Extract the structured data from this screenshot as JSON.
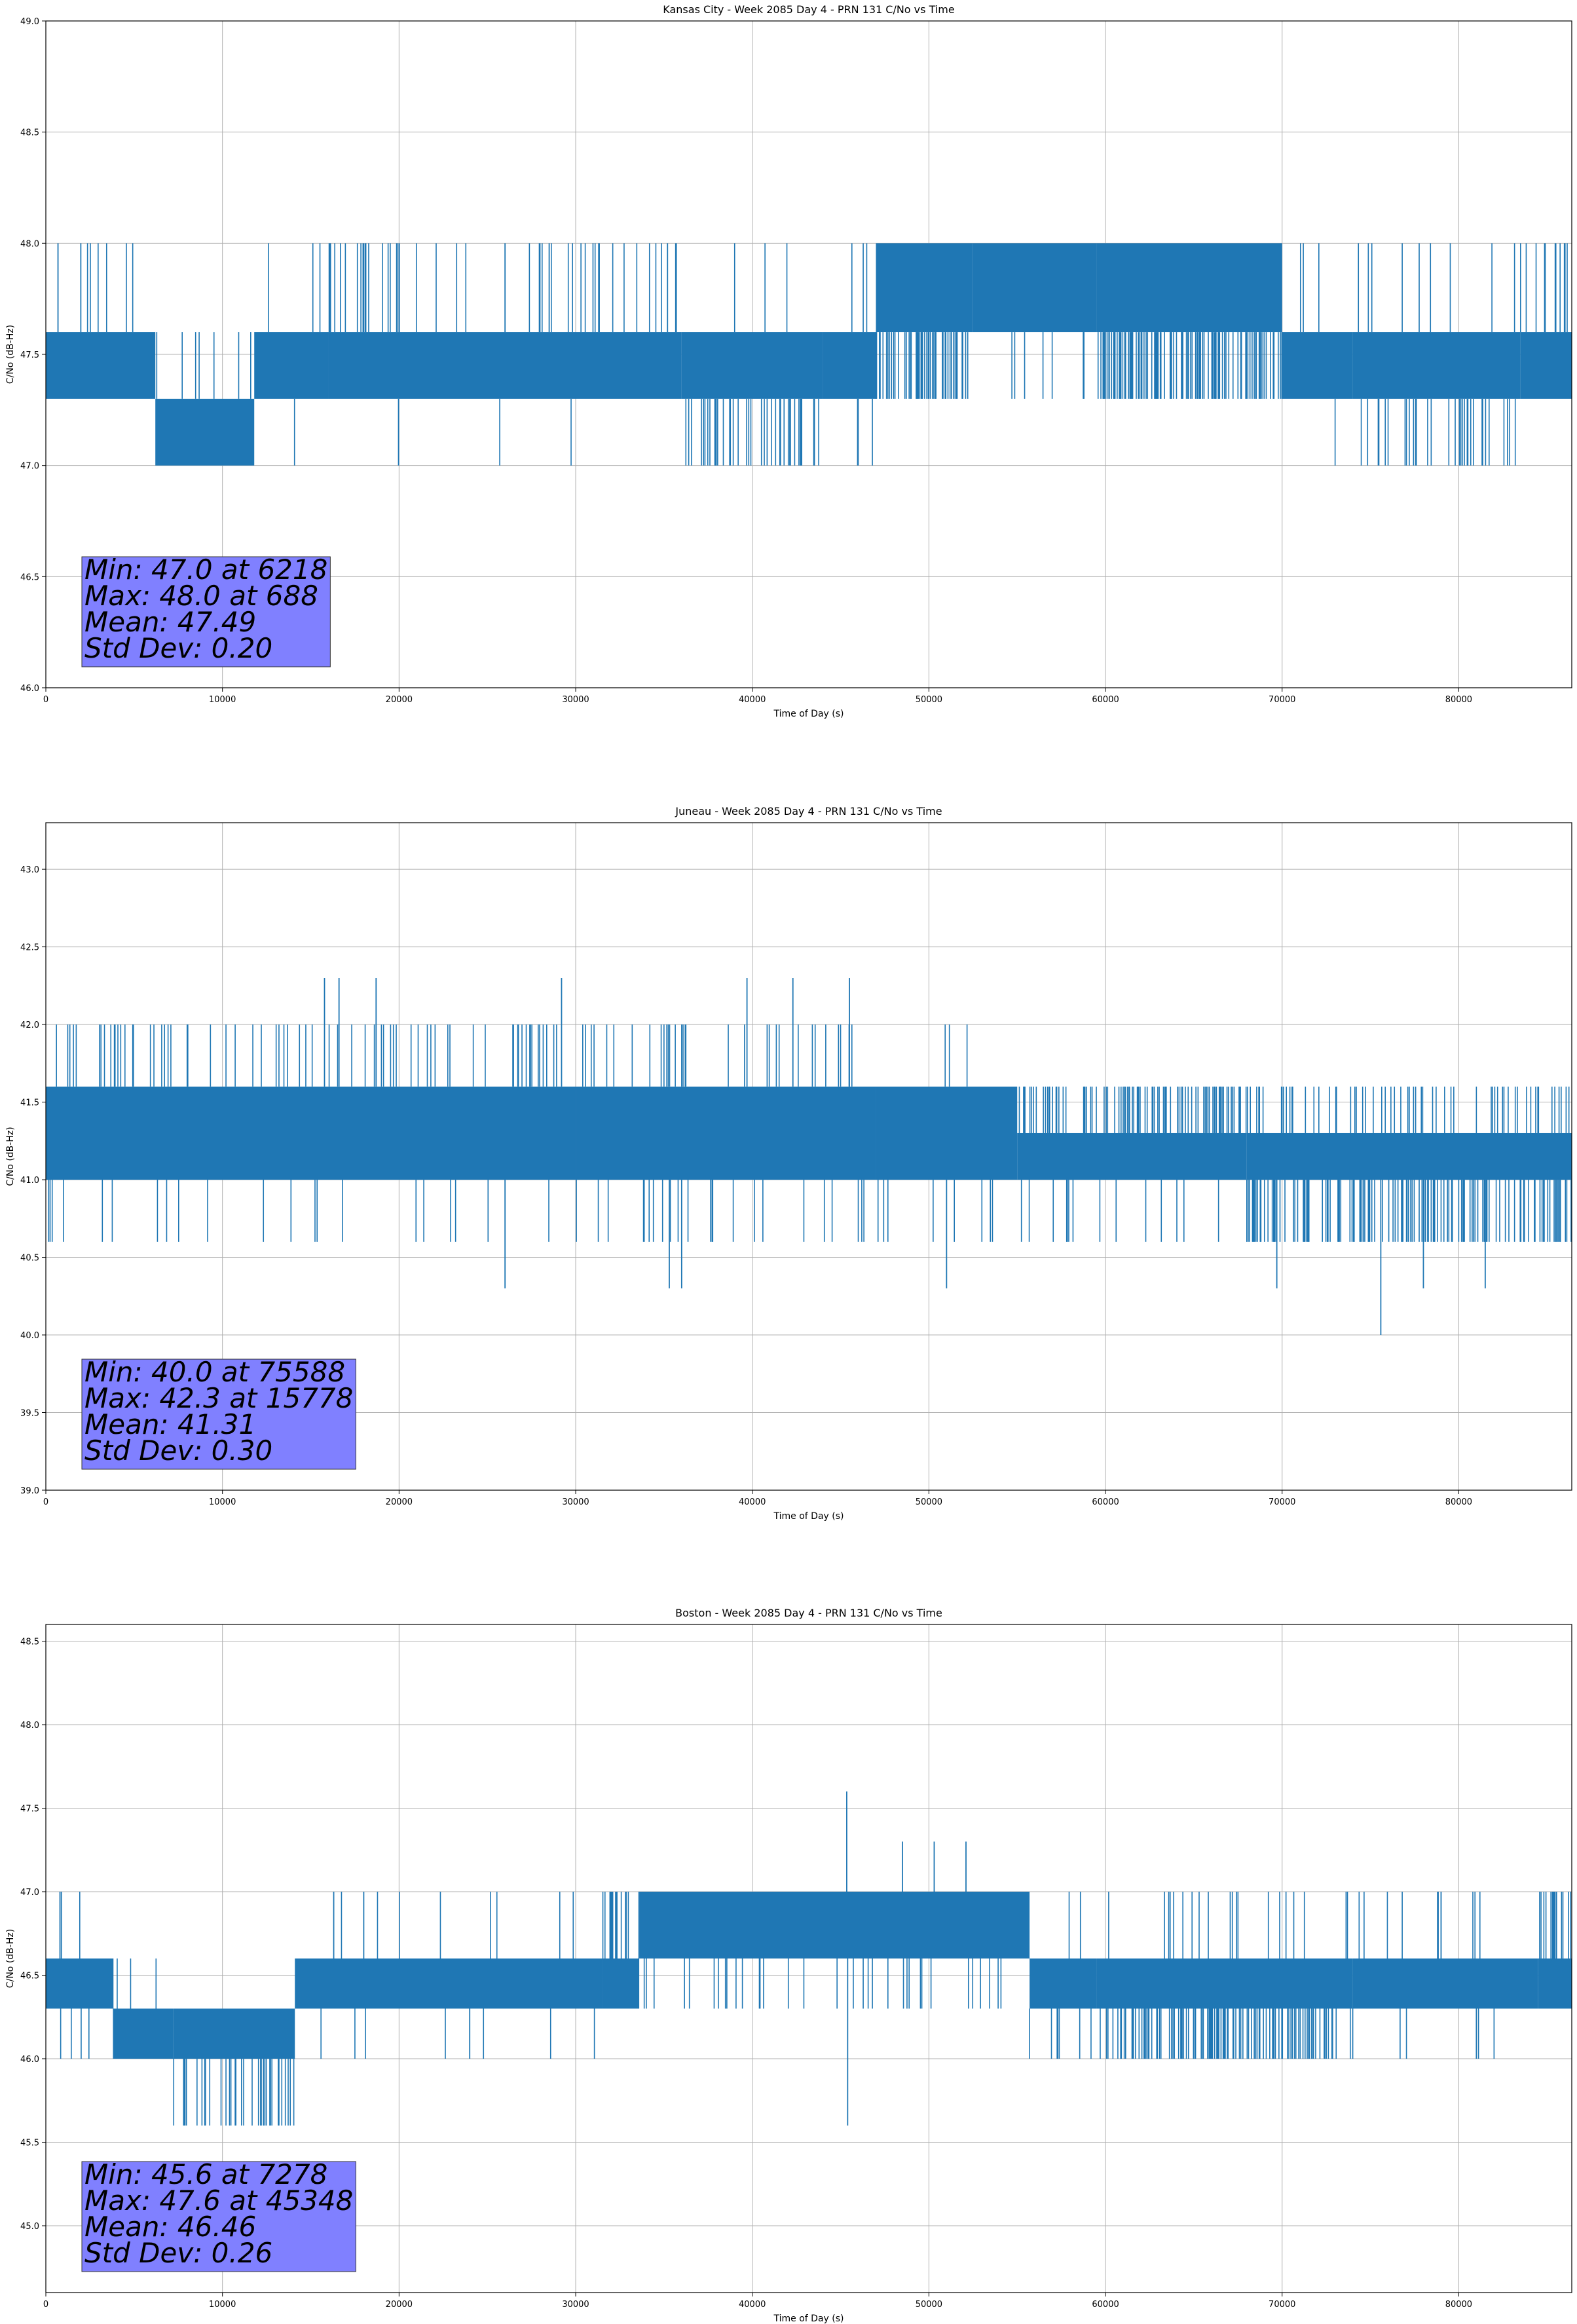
{
  "chart_data": [
    {
      "type": "line",
      "title": "Kansas City - Week 2085 Day 4 - PRN 131 C/No vs Time",
      "xlabel": "Time of Day (s)",
      "ylabel": "C/No (dB-Hz)",
      "xlim": [
        0,
        86400
      ],
      "ylim": [
        46.0,
        49.0
      ],
      "xticks": [
        0,
        10000,
        20000,
        30000,
        40000,
        50000,
        60000,
        70000,
        80000
      ],
      "yticks": [
        "46.0",
        "46.5",
        "47.0",
        "47.5",
        "48.0",
        "48.5",
        "49.0"
      ],
      "grid": true,
      "color": "#1f77b4",
      "stats": [
        "Min: 47.0 at 6218",
        "Max: 48.0 at 688",
        "Mean: 47.49",
        "Std Dev: 0.20"
      ],
      "stats_box_color": "#8080ff",
      "levels": [
        47.0,
        47.3,
        47.6,
        48.0
      ],
      "segments": [
        {
          "x": [
            0,
            6200
          ],
          "band": [
            47.3,
            47.6
          ],
          "up": 0.03,
          "down": 0.01
        },
        {
          "x": [
            6200,
            11800
          ],
          "band": [
            47.0,
            47.3
          ],
          "up": 0.05,
          "down": 0.0
        },
        {
          "x": [
            11800,
            16000
          ],
          "band": [
            47.3,
            47.6
          ],
          "up": 0.02,
          "down": 0.01
        },
        {
          "x": [
            16000,
            18300
          ],
          "band": [
            47.3,
            47.6
          ],
          "up": 0.25,
          "down": 0.0
        },
        {
          "x": [
            18300,
            36000
          ],
          "band": [
            47.3,
            47.6
          ],
          "up": 0.05,
          "down": 0.01
        },
        {
          "x": [
            36000,
            44000
          ],
          "band": [
            47.3,
            47.6
          ],
          "up": 0.02,
          "down": 0.22
        },
        {
          "x": [
            44000,
            47000
          ],
          "band": [
            47.3,
            47.6
          ],
          "up": 0.04,
          "down": 0.03
        },
        {
          "x": [
            47000,
            52500
          ],
          "band": [
            47.6,
            48.0
          ],
          "up": 0.0,
          "down": 0.3
        },
        {
          "x": [
            52500,
            59500
          ],
          "band": [
            47.6,
            48.0
          ],
          "up": 0.0,
          "down": 0.04
        },
        {
          "x": [
            59500,
            70000
          ],
          "band": [
            47.6,
            48.0
          ],
          "up": 0.0,
          "down": 0.35
        },
        {
          "x": [
            70000,
            74000
          ],
          "band": [
            47.3,
            47.6
          ],
          "up": 0.04,
          "down": 0.03
        },
        {
          "x": [
            74000,
            83500
          ],
          "band": [
            47.3,
            47.6
          ],
          "up": 0.03,
          "down": 0.12
        },
        {
          "x": [
            83500,
            86400
          ],
          "band": [
            47.3,
            47.6
          ],
          "up": 0.12,
          "down": 0.0
        }
      ],
      "spikes": [
        [
          688,
          48.0
        ],
        [
          1980,
          48.0
        ],
        [
          6218,
          47.0
        ],
        [
          19970,
          47.0
        ],
        [
          26000,
          48.0
        ],
        [
          28500,
          48.0
        ],
        [
          35200,
          48.0
        ],
        [
          86000,
          48.0
        ]
      ]
    },
    {
      "type": "line",
      "title": "Juneau - Week 2085 Day 4 - PRN 131 C/No vs Time",
      "xlabel": "Time of Day (s)",
      "ylabel": "C/No (dB-Hz)",
      "xlim": [
        0,
        86400
      ],
      "ylim": [
        39.0,
        43.3
      ],
      "xticks": [
        0,
        10000,
        20000,
        30000,
        40000,
        50000,
        60000,
        70000,
        80000
      ],
      "yticks": [
        "39.0",
        "39.5",
        "40.0",
        "40.5",
        "41.0",
        "41.5",
        "42.0",
        "42.5",
        "43.0"
      ],
      "grid": true,
      "color": "#1f77b4",
      "stats": [
        "Min: 40.0 at 75588",
        "Max: 42.3 at 15778",
        "Mean: 41.31",
        "Std Dev: 0.30"
      ],
      "stats_box_color": "#8080ff",
      "levels": [
        40.0,
        40.3,
        40.6,
        41.0,
        41.3,
        41.6,
        42.0,
        42.3
      ],
      "segments": [
        {
          "x": [
            0,
            30000
          ],
          "band": [
            41.0,
            41.6
          ],
          "up": 0.1,
          "down": 0.02
        },
        {
          "x": [
            30000,
            47000
          ],
          "band": [
            41.0,
            41.6
          ],
          "up": 0.08,
          "down": 0.05
        },
        {
          "x": [
            47000,
            55000
          ],
          "band": [
            41.0,
            41.6
          ],
          "up": 0.03,
          "down": 0.03
        },
        {
          "x": [
            55000,
            68000
          ],
          "band": [
            41.0,
            41.3
          ],
          "up": 0.25,
          "down": 0.06
        },
        {
          "x": [
            68000,
            86400
          ],
          "band": [
            41.0,
            41.3
          ],
          "up": 0.12,
          "down": 0.25
        }
      ],
      "spikes": [
        [
          15778,
          42.3
        ],
        [
          16600,
          42.3
        ],
        [
          18700,
          42.3
        ],
        [
          29200,
          42.3
        ],
        [
          39700,
          42.3
        ],
        [
          42300,
          42.3
        ],
        [
          45500,
          42.3
        ],
        [
          26000,
          40.3
        ],
        [
          35300,
          40.3
        ],
        [
          36000,
          40.3
        ],
        [
          51000,
          40.3
        ],
        [
          69700,
          40.3
        ],
        [
          75588,
          40.0
        ],
        [
          78000,
          40.3
        ],
        [
          81500,
          40.3
        ]
      ]
    },
    {
      "type": "line",
      "title": "Boston - Week 2085 Day 4 - PRN 131 C/No vs Time",
      "xlabel": "Time of Day (s)",
      "ylabel": "C/No (dB-Hz)",
      "xlim": [
        0,
        86400
      ],
      "ylim": [
        44.6,
        48.6
      ],
      "xticks": [
        0,
        10000,
        20000,
        30000,
        40000,
        50000,
        60000,
        70000,
        80000
      ],
      "yticks": [
        "45.0",
        "45.5",
        "46.0",
        "46.5",
        "47.0",
        "47.5",
        "48.0",
        "48.5"
      ],
      "grid": true,
      "color": "#1f77b4",
      "stats": [
        "Min: 45.6 at 7278",
        "Max: 47.6 at 45348",
        "Mean: 46.46",
        "Std Dev: 0.26"
      ],
      "stats_box_color": "#8080ff",
      "levels": [
        45.6,
        46.0,
        46.3,
        46.6,
        47.0
      ],
      "segments": [
        {
          "x": [
            0,
            3800
          ],
          "band": [
            46.3,
            46.6
          ],
          "up": 0.03,
          "down": 0.04
        },
        {
          "x": [
            3800,
            7200
          ],
          "band": [
            46.0,
            46.3
          ],
          "up": 0.05,
          "down": 0.0
        },
        {
          "x": [
            7200,
            14100
          ],
          "band": [
            46.0,
            46.3
          ],
          "up": 0.0,
          "down": 0.2
        },
        {
          "x": [
            14100,
            31500
          ],
          "band": [
            46.3,
            46.6
          ],
          "up": 0.02,
          "down": 0.01
        },
        {
          "x": [
            31500,
            33600
          ],
          "band": [
            46.3,
            46.6
          ],
          "up": 0.3,
          "down": 0.0
        },
        {
          "x": [
            33600,
            55700
          ],
          "band": [
            46.6,
            47.0
          ],
          "up": 0.0,
          "down": 0.05
        },
        {
          "x": [
            55700,
            59500
          ],
          "band": [
            46.3,
            46.6
          ],
          "up": 0.08,
          "down": 0.08
        },
        {
          "x": [
            59500,
            74000
          ],
          "band": [
            46.3,
            46.6
          ],
          "up": 0.03,
          "down": 0.3
        },
        {
          "x": [
            74000,
            84500
          ],
          "band": [
            46.3,
            46.6
          ],
          "up": 0.05,
          "down": 0.02
        },
        {
          "x": [
            84500,
            86400
          ],
          "band": [
            46.3,
            46.6
          ],
          "up": 0.35,
          "down": 0.0
        }
      ],
      "spikes": [
        [
          800,
          47.0
        ],
        [
          16300,
          47.0
        ],
        [
          18000,
          47.0
        ],
        [
          24000,
          46.0
        ],
        [
          45348,
          47.6
        ],
        [
          45400,
          45.6
        ],
        [
          48500,
          47.3
        ],
        [
          50300,
          47.3
        ],
        [
          52100,
          47.3
        ],
        [
          79000,
          47.0
        ],
        [
          81000,
          46.0
        ]
      ]
    }
  ]
}
